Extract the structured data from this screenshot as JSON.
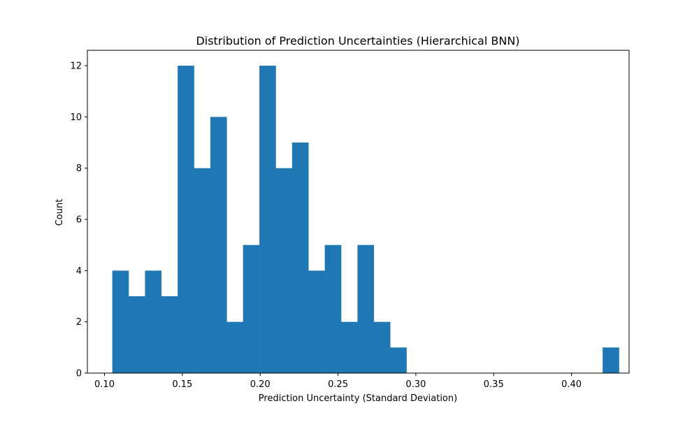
{
  "chart_data": {
    "type": "bar",
    "title": "Distribution of Prediction Uncertainties (Hierarchical BNN)",
    "xlabel": "Prediction Uncertainty (Standard Deviation)",
    "ylabel": "Count",
    "xlim": [
      0.089,
      0.437
    ],
    "ylim": [
      0,
      12.6
    ],
    "bin_start": 0.105,
    "bin_width": 0.0105,
    "counts": [
      4,
      3,
      4,
      3,
      12,
      8,
      10,
      2,
      5,
      12,
      8,
      9,
      4,
      5,
      2,
      5,
      2,
      1,
      0,
      0,
      0,
      0,
      0,
      0,
      0,
      0,
      0,
      0,
      0,
      0,
      1
    ],
    "xticks": [
      0.1,
      0.15,
      0.2,
      0.25,
      0.3,
      0.35,
      0.4
    ],
    "xtick_labels": [
      "0.10",
      "0.15",
      "0.20",
      "0.25",
      "0.30",
      "0.35",
      "0.40"
    ],
    "yticks": [
      0,
      2,
      4,
      6,
      8,
      10,
      12
    ],
    "ytick_labels": [
      "0",
      "2",
      "4",
      "6",
      "8",
      "10",
      "12"
    ],
    "bar_color": "#1f77b4",
    "grid": false,
    "legend": "none"
  }
}
